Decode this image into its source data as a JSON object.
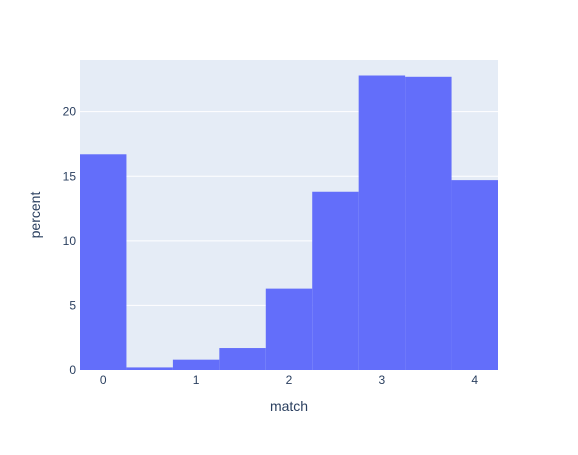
{
  "chart_data": {
    "type": "bar",
    "bins": [
      {
        "x0": -0.25,
        "x1": 0.25,
        "value": 16.7
      },
      {
        "x0": 0.25,
        "x1": 0.75,
        "value": 0.2
      },
      {
        "x0": 0.75,
        "x1": 1.25,
        "value": 0.8
      },
      {
        "x0": 1.25,
        "x1": 1.75,
        "value": 1.7
      },
      {
        "x0": 1.75,
        "x1": 2.25,
        "value": 6.3
      },
      {
        "x0": 2.25,
        "x1": 2.75,
        "value": 13.8
      },
      {
        "x0": 2.75,
        "x1": 3.25,
        "value": 22.8
      },
      {
        "x0": 3.25,
        "x1": 3.75,
        "value": 22.7
      },
      {
        "x0": 3.75,
        "x1": 4.25,
        "value": 14.7
      }
    ],
    "xlabel": "match",
    "ylabel": "percent",
    "xticks": [
      "0",
      "1",
      "2",
      "3",
      "4"
    ],
    "yticks": [
      "0",
      "5",
      "10",
      "15",
      "20"
    ],
    "xlim": [
      -0.25,
      4.25
    ],
    "ylim": [
      0,
      24
    ],
    "grid": true,
    "colors": {
      "bar": "#636efa",
      "plot_bg": "#e5ecf6",
      "grid": "#ffffff",
      "text": "#2a3f5f"
    }
  }
}
